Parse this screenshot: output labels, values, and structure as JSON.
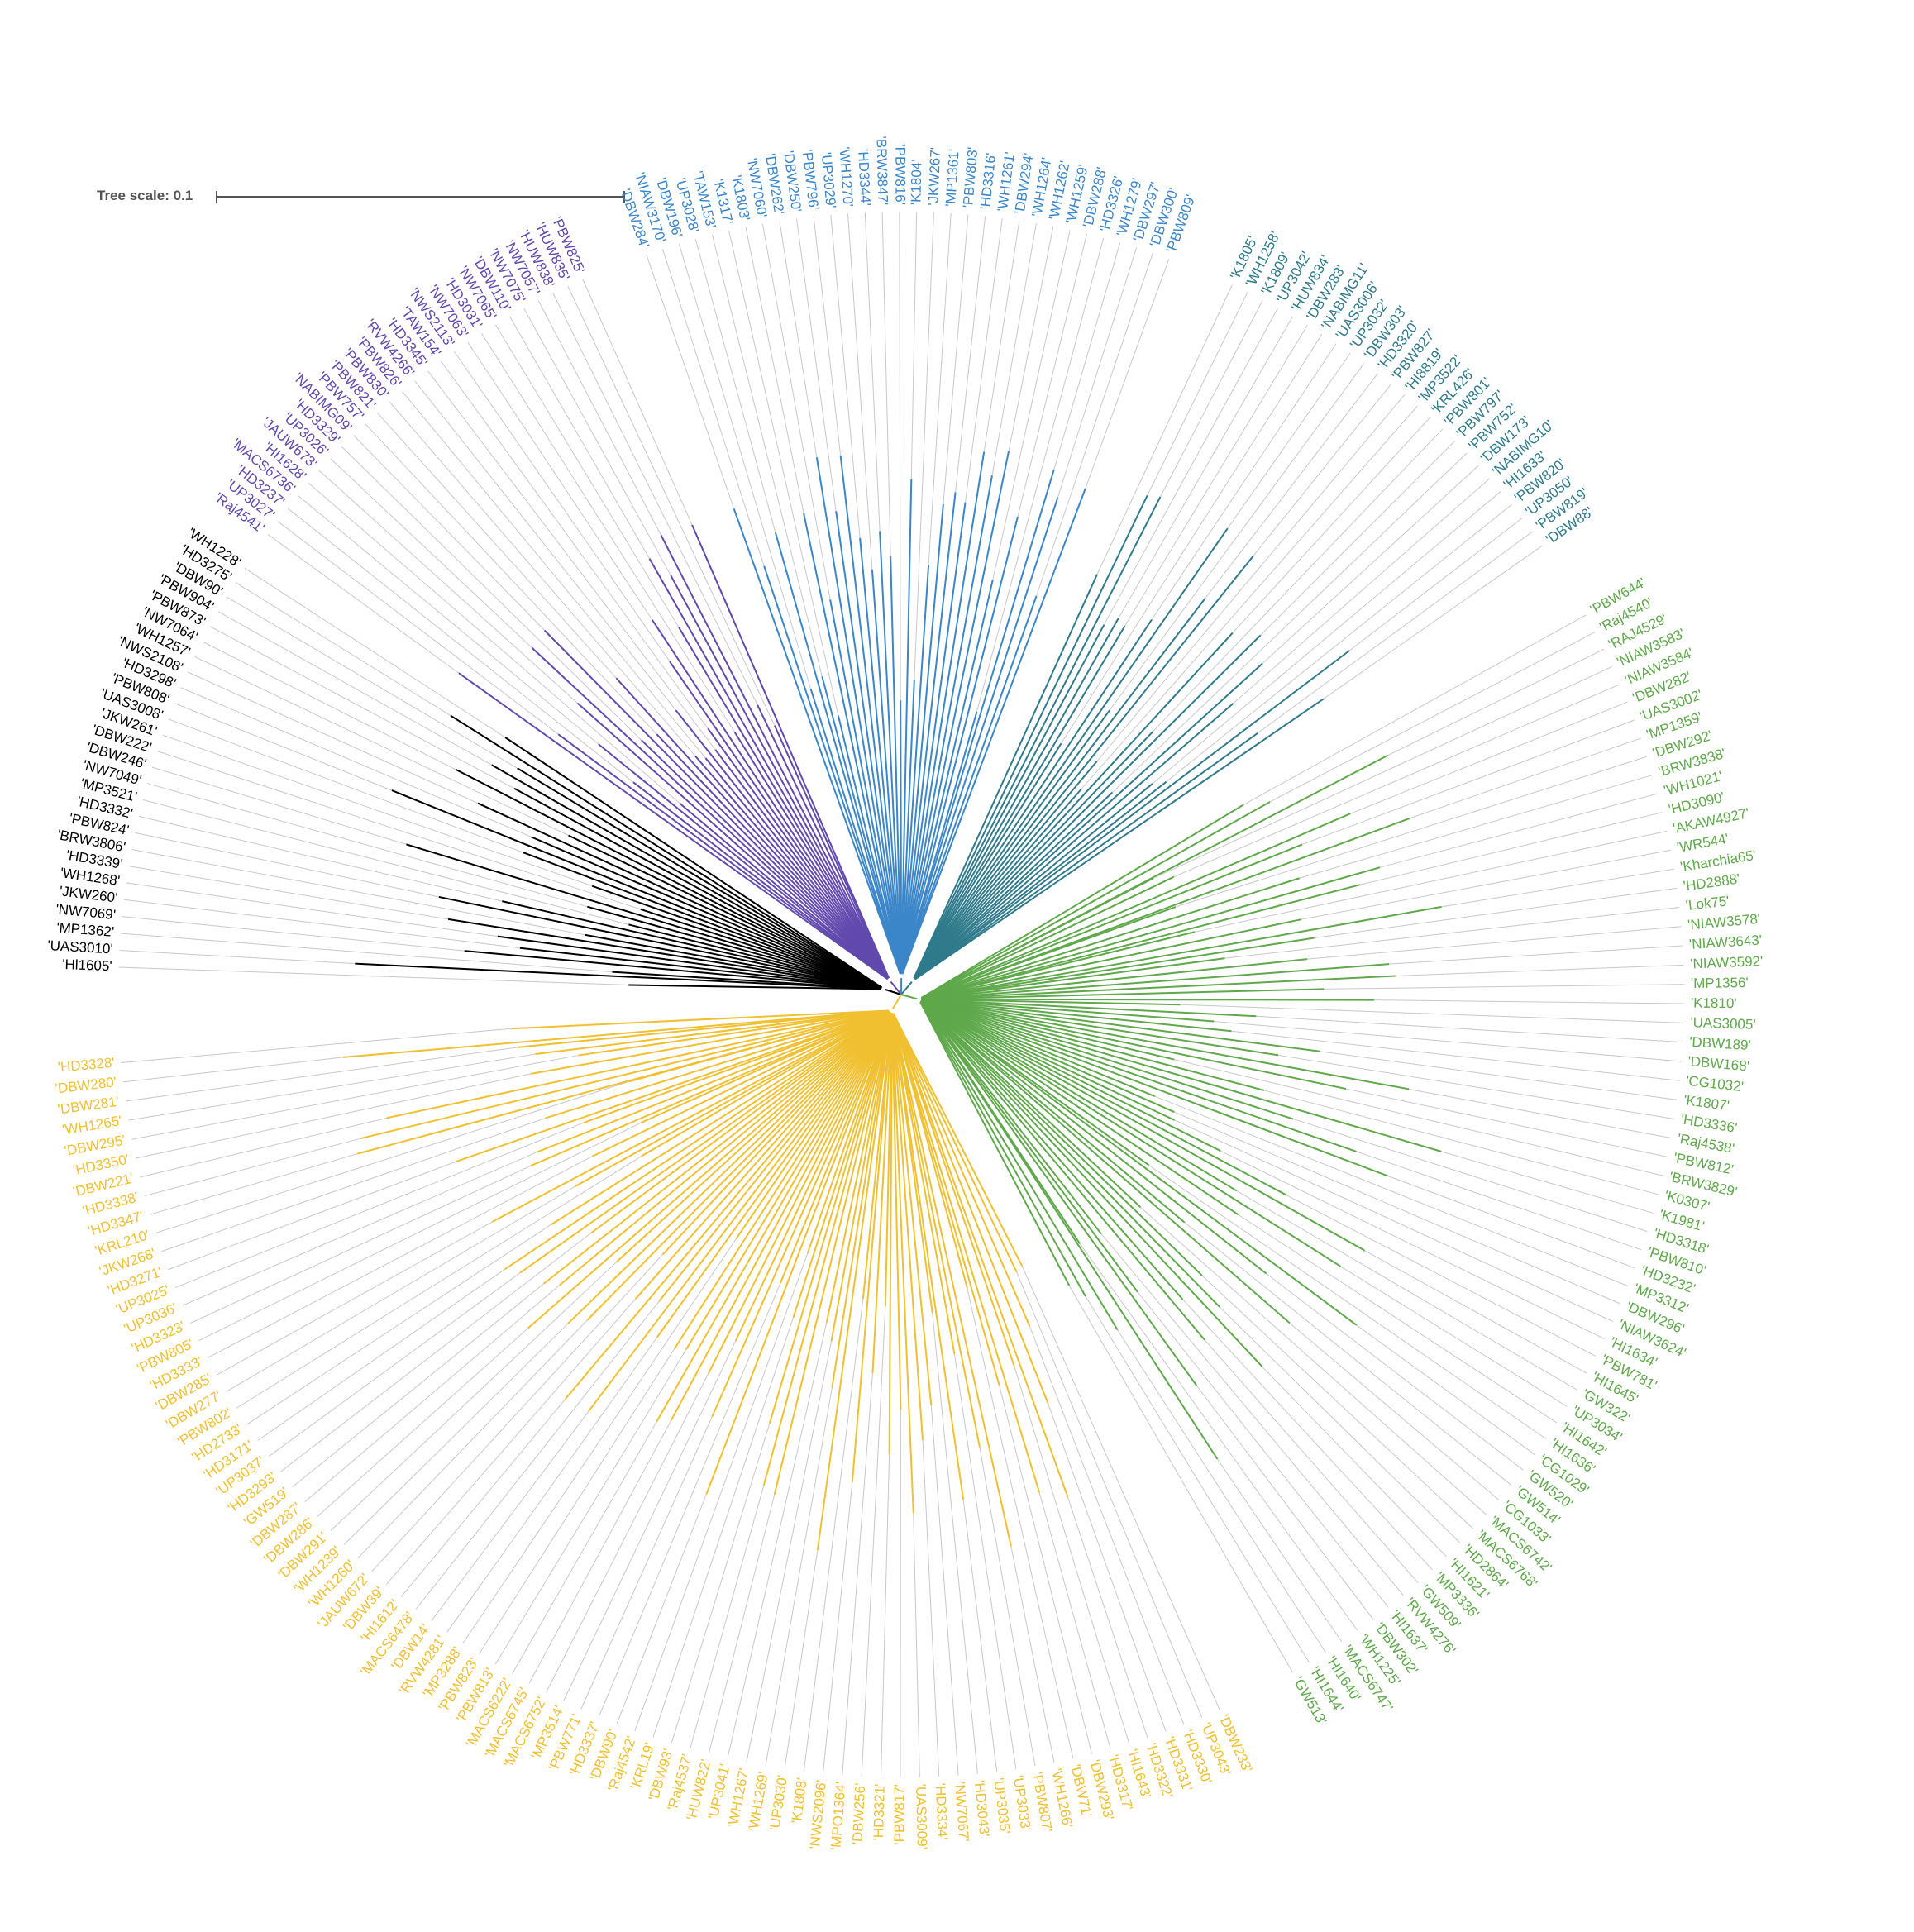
{
  "tree_scale": "Tree scale: 0.1",
  "clades": [
    {
      "color": "#000000",
      "leaves": [
        "'Hl1605'",
        "'UAS3010'",
        "'MP1362'",
        "'NW7069'",
        "'JKW260'",
        "'WH1268'",
        "'HD3339'",
        "'BRW3806'",
        "'PBW824'",
        "'HD3332'",
        "'MP3521'",
        "'NW7049'",
        "'DBW246'",
        "'DBW222'",
        "'JKW261'",
        "'UAS3008'",
        "'PBW808'",
        "'HD3298'",
        "'NWS2108'",
        "'WH1257'",
        "'NW7064'",
        "'PBW873'",
        "'PBW904'",
        "'DBW90'",
        "'HD3275'",
        "'WH1228'"
      ]
    },
    {
      "color": "#6149ad",
      "leaves": [
        "'Raj4541'",
        "'UP3027'",
        "'HD3237'",
        "'MACS6736'",
        "'HI1628'",
        "'JAUW673'",
        "'UP3026'",
        "'HD3329'",
        "'NABIMG09'",
        "'PBW757'",
        "'PBW821'",
        "'PBW830'",
        "'PBW826'",
        "'RVW4266'",
        "'HD3345'",
        "'TAW154'",
        "'NWS2113'",
        "'NW7063'",
        "'HD3031'",
        "'NW7065'",
        "'DBW110'",
        "'NW7075'",
        "'NW7057'",
        "'HUW838'",
        "'HUW835'",
        "'PBW825'"
      ]
    },
    {
      "color": "#3b86c9",
      "leaves": [
        "'DBW284'",
        "'NIAW3170'",
        "'DBW196'",
        "'UP3028'",
        "'TAW153'",
        "'K1317'",
        "'K1803'",
        "'NW7060'",
        "'DBW262'",
        "'DBW250'",
        "'PBW796'",
        "'UP3029'",
        "'WH1270'",
        "'HD3344'",
        "'BRW3847'",
        "'PBW816'",
        "'K1804'",
        "'JKW267'",
        "'MP1361'",
        "'PBW803'",
        "'HD3316'",
        "'WH1261'",
        "'DBW294'",
        "'WH1264'",
        "'WH1262'",
        "'WH1259'",
        "'DBW288'",
        "'HD3326'",
        "'WH1279'",
        "'DBW297'",
        "'DBW300'",
        "'PBW809'"
      ]
    },
    {
      "color": "#2f7a8b",
      "leaves": [
        "'K1805'",
        "'WH1258'",
        "'K1809'",
        "'UP3042'",
        "'HUW834'",
        "'DBW283'",
        "'NABIMG11'",
        "'UAS3006'",
        "'UP3032'",
        "'DBW303'",
        "'HD3320'",
        "'PBW827'",
        "'HI8819'",
        "'MP3522'",
        "'KRL426'",
        "'PBW801'",
        "'PBW797'",
        "'PBW752'",
        "'DBW173'",
        "'NABIMG10'",
        "'HI1633'",
        "'PBW820'",
        "'UP3050'",
        "'PBW819'",
        "'DBW88'"
      ]
    },
    {
      "color": "#5fa84b",
      "leaves": [
        "'PBW644'",
        "'Raj4540'",
        "'RAJ4529'",
        "'NIAW3583'",
        "'NIAW3584'",
        "'DBW282'",
        "'UAS3002'",
        "'MP1359'",
        "'DBW292'",
        "'BRW3838'",
        "'WH1021'",
        "'HD3090'",
        "'AKAW4927'",
        "'WR544'",
        "'Kharchia65'",
        "'HD2888'",
        "'Lok75'",
        "'NIAW3578'",
        "'NIAW3643'",
        "'NIAW3592'",
        "'MP1356'",
        "'K1810'",
        "'UAS3005'",
        "'DBW189'",
        "'DBW168'",
        "'CG1032'",
        "'K1807'",
        "'HD3336'",
        "'Raj4538'",
        "'PBW812'",
        "'BRW3829'",
        "'K0307'",
        "'K1981'",
        "'HD3318'",
        "'PBW810'",
        "'HD3232'",
        "'MP3312'",
        "'DBW296'",
        "'NIAW3624'",
        "'HI1634'",
        "'PBW781'",
        "'HI1645'",
        "'GW322'",
        "'UP3034'",
        "'HI1642'",
        "'HI1636'",
        "'CG1029'",
        "'GW520'",
        "'GW514'",
        "'CG1033'",
        "'MACS6742'",
        "'MACS6768'",
        "'HD2864'",
        "'HI1621'",
        "'MP3336'",
        "'GW509'",
        "'RVW4276'",
        "'HI1637'",
        "'DBW302'",
        "'WH1225'",
        "'MACS6747'",
        "'HI1640'",
        "'HI1644'",
        "'GW513'"
      ]
    },
    {
      "color": "#f0c030",
      "leaves": [
        "'DBW233'",
        "'UP3043'",
        "'HD3330'",
        "'HD3331'",
        "'HD3322'",
        "'HI1643'",
        "'HD3317'",
        "'DBW293'",
        "'DBW71'",
        "'WH1266'",
        "'PBW807'",
        "'UP3033'",
        "'UP3035'",
        "'HD3043'",
        "'NW7067'",
        "'HD3334'",
        "'UAS3009'",
        "'PBW817'",
        "'HD3321'",
        "'DBW256'",
        "'MPO1364'",
        "'NWS2096'",
        "'K1808'",
        "'UP3030'",
        "'WH1269'",
        "'WH1267'",
        "'UP3041'",
        "'HUW822'",
        "'Raj4537'",
        "'DBW93'",
        "'KRL19'",
        "'Raj4542'",
        "'DBW90'",
        "'HD3337'",
        "'PBW771'",
        "'MP3514'",
        "'MACS6752'",
        "'MACS6745'",
        "'MACS6222'",
        "'PBW813'",
        "'PBW823'",
        "'MP3288'",
        "'RVW4281'",
        "'DBW14'",
        "'MACS6478'",
        "'HI1612'",
        "'DBW39'",
        "'JAUW672'",
        "'WH1260'",
        "'WH1239'",
        "'DBW291'",
        "'DBW286'",
        "'DBW287'",
        "'GW519'",
        "'HD3293'",
        "'UP3037'",
        "'HD3171'",
        "'HD2733'",
        "'PBW802'",
        "'DBW277'",
        "'DBW285'",
        "'HD3333'",
        "'PBW805'",
        "'HD3323'",
        "'UP3036'",
        "'UP3025'",
        "'HD3271'",
        "'JKW268'",
        "'KRL210'",
        "'HD3347'",
        "'HD3338'",
        "'DBW221'",
        "'HD3350'",
        "'DBW295'",
        "'WH1265'",
        "'DBW281'",
        "'DBW280'",
        "'HD3328'"
      ]
    }
  ]
}
